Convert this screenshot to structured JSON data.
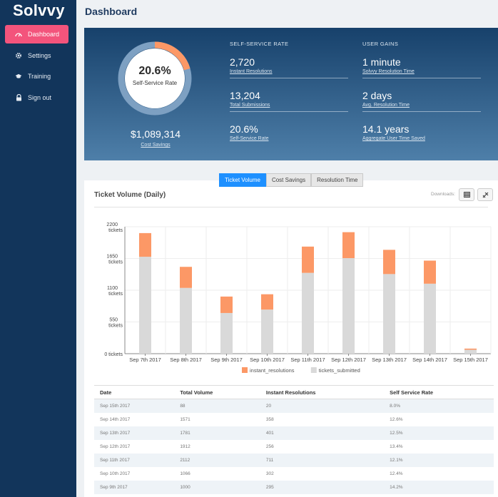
{
  "app": {
    "logo": "Solvvy"
  },
  "sidebar": {
    "items": [
      {
        "label": "Dashboard",
        "icon": "gauge-icon"
      },
      {
        "label": "Settings",
        "icon": "gear-icon"
      },
      {
        "label": "Training",
        "icon": "graduation-cap-icon"
      },
      {
        "label": "Sign out",
        "icon": "lock-icon"
      }
    ]
  },
  "header": {
    "title": "Dashboard"
  },
  "stats": {
    "donut_value": "20.6%",
    "donut_label": "Self-Service Rate",
    "donut_fraction": 0.206,
    "savings_value": "$1,089,314",
    "savings_label": "Cost Savings",
    "self_service": {
      "heading": "SELF-SERVICE RATE",
      "items": [
        {
          "value": "2,720",
          "label": "Instant Resolutions"
        },
        {
          "value": "13,204",
          "label": "Total Submissions"
        },
        {
          "value": "20.6%",
          "label": "Self-Service Rate"
        }
      ]
    },
    "user_gains": {
      "heading": "USER GAINS",
      "items": [
        {
          "value": "1 minute",
          "label": "Solvvy Resolution Time"
        },
        {
          "value": "2 days",
          "label": "Avg. Resolution Time"
        },
        {
          "value": "14.1 years",
          "label": "Aggregate User Time Saved"
        }
      ]
    }
  },
  "tabs": [
    "Ticket Volume",
    "Cost Savings",
    "Resolution Time"
  ],
  "chart": {
    "title": "Ticket Volume (Daily)",
    "downloads_label": "Downloads:"
  },
  "chart_data": {
    "type": "bar",
    "stacked": true,
    "categories": [
      "Sep 7th 2017",
      "Sep 8th 2017",
      "Sep 9th 2017",
      "Sep 10th 2017",
      "Sep 11th 2017",
      "Sep 12th 2017",
      "Sep 13th 2017",
      "Sep 14th 2017",
      "Sep 15th 2017"
    ],
    "series": [
      {
        "name": "tickets_submitted",
        "color": "#d9d9d9",
        "values": [
          1680,
          1140,
          705,
          764,
          1401,
          1656,
          1380,
          1213,
          68
        ]
      },
      {
        "name": "instant_resolutions",
        "color": "#fc9866",
        "values": [
          410,
          365,
          285,
          266,
          455,
          450,
          420,
          400,
          20
        ]
      }
    ],
    "yticks": [
      "0 tickets",
      "550 tickets",
      "1100 tickets",
      "1650 tickets",
      "2200 tickets"
    ],
    "ylim": [
      0,
      2200
    ],
    "legend": [
      "instant_resolutions",
      "tickets_submitted"
    ],
    "grid": true
  },
  "table": {
    "columns": [
      "Date",
      "Total Volume",
      "Instant Resolutions",
      "Self Service Rate"
    ],
    "rows": [
      [
        "Sep 15th 2017",
        "88",
        "20",
        "8.0%"
      ],
      [
        "Sep 14th 2017",
        "1571",
        "358",
        "12.6%"
      ],
      [
        "Sep 13th 2017",
        "1781",
        "401",
        "12.5%"
      ],
      [
        "Sep 12th 2017",
        "1912",
        "256",
        "13.4%"
      ],
      [
        "Sep 11th 2017",
        "2112",
        "711",
        "12.1%"
      ],
      [
        "Sep 10th 2017",
        "1066",
        "302",
        "12.4%"
      ],
      [
        "Sep 9th 2017",
        "1000",
        "295",
        "14.2%"
      ]
    ]
  }
}
